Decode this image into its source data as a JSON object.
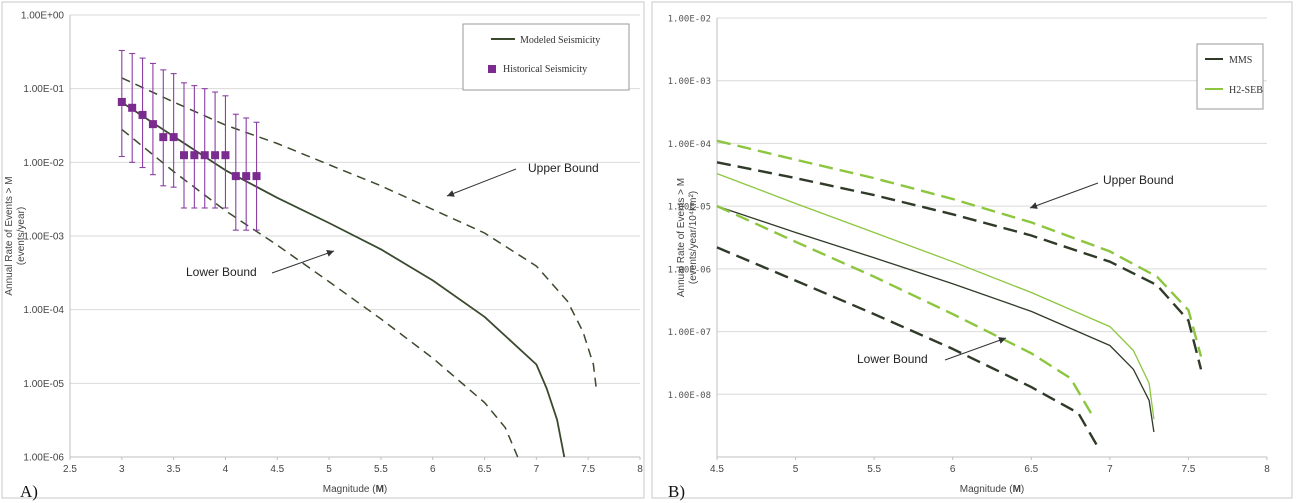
{
  "chart_data": [
    {
      "type": "line",
      "panel_label": "A)",
      "xlabel_prefix": "Magnitude (",
      "xlabel_bold": "M",
      "xlabel_suffix": ")",
      "ylabel_line1": "Annual Rate of Events > M",
      "ylabel_line2": "(events/year)",
      "x_ticks": [
        "2.5",
        "3",
        "3.5",
        "4",
        "4.5",
        "5",
        "5.5",
        "6",
        "6.5",
        "7",
        "7.5",
        "8"
      ],
      "y_ticks": [
        "1.00E+00",
        "1.00E-01",
        "1.00E-02",
        "1.00E-03",
        "1.00E-04",
        "1.00E-05",
        "1.00E-06"
      ],
      "xlim": [
        2.5,
        8
      ],
      "ylim": [
        1e-06,
        1
      ],
      "yscale": "log",
      "grid": "horizontal",
      "legend_position": "top-right",
      "legend": [
        "Modeled Seismicity",
        "Historical Seismicity"
      ],
      "annotations": [
        "Upper Bound",
        "Lower Bound"
      ],
      "series": [
        {
          "name": "Modeled Seismicity",
          "style": "solid",
          "color": "#3b4a2e",
          "x": [
            3.0,
            3.5,
            4.0,
            4.5,
            5.0,
            5.5,
            6.0,
            6.5,
            7.0,
            7.1,
            7.2,
            7.27
          ],
          "y": [
            0.065,
            0.0225,
            0.0078,
            0.0033,
            0.0015,
            0.00066,
            0.00025,
            8e-05,
            1.8e-05,
            8.5e-06,
            3.2e-06,
            1e-06
          ]
        },
        {
          "style": "dashed",
          "color": "#3b4a2e",
          "x": [
            3.0,
            3.5,
            4.0,
            4.5,
            5.0,
            5.5,
            6.0,
            6.5,
            7.0,
            7.3,
            7.45,
            7.55,
            7.58
          ],
          "y": [
            0.14,
            0.066,
            0.032,
            0.018,
            0.0093,
            0.0048,
            0.0023,
            0.0011,
            0.00039,
            0.00013,
            5e-05,
            1.8e-05,
            8e-06
          ]
        },
        {
          "style": "dashed",
          "color": "#3b4a2e",
          "x": [
            3.0,
            3.5,
            4.0,
            4.5,
            5.0,
            5.5,
            6.0,
            6.5,
            6.7,
            6.82
          ],
          "y": [
            0.028,
            0.0075,
            0.0022,
            0.00075,
            0.00024,
            7.5e-05,
            2.2e-05,
            5.5e-06,
            2.5e-06,
            1e-06
          ]
        },
        {
          "name": "Historical Seismicity",
          "style": "markers",
          "color": "#7b2a8f",
          "x": [
            3.0,
            3.1,
            3.2,
            3.3,
            3.4,
            3.5,
            3.6,
            3.7,
            3.8,
            3.9,
            4.0,
            4.1,
            4.2,
            4.3
          ],
          "y": [
            0.066,
            0.055,
            0.044,
            0.033,
            0.022,
            0.022,
            0.0125,
            0.0125,
            0.0125,
            0.0125,
            0.0125,
            0.0065,
            0.0065,
            0.0065
          ],
          "y_low": [
            0.012,
            0.01,
            0.0085,
            0.0068,
            0.0048,
            0.0046,
            0.0024,
            0.0024,
            0.0024,
            0.0024,
            0.0024,
            0.0012,
            0.0012,
            0.0012
          ],
          "y_high": [
            0.33,
            0.3,
            0.26,
            0.22,
            0.18,
            0.16,
            0.12,
            0.11,
            0.1,
            0.09,
            0.08,
            0.045,
            0.04,
            0.035
          ]
        }
      ]
    },
    {
      "type": "line",
      "panel_label": "B)",
      "xlabel_prefix": "Magnitude (",
      "xlabel_bold": "M",
      "xlabel_suffix": ")",
      "ylabel_line1": "Annual Rate of Events > M",
      "ylabel_line2": "(events/year/10⁴km²)",
      "x_ticks": [
        "4.5",
        "5",
        "5.5",
        "6",
        "6.5",
        "7",
        "7.5",
        "8"
      ],
      "y_ticks": [
        "1.00E-02",
        "1.00E-03",
        "1.00E-04",
        "1.00E-05",
        "1.00E-06",
        "1.00E-07",
        "1.00E-08"
      ],
      "xlim": [
        4.5,
        8
      ],
      "ylim": [
        1e-08,
        0.1
      ],
      "yscale": "log",
      "grid": "horizontal",
      "legend_position": "top-right",
      "legend": [
        "MMS",
        "H2-SEB"
      ],
      "annotations": [
        "Upper Bound",
        "Lower Bound"
      ],
      "series": [
        {
          "name": "MMS",
          "style": "solid",
          "color": "#2f3a28",
          "width": 1.3,
          "x": [
            4.5,
            5.0,
            5.5,
            6.0,
            6.5,
            7.0,
            7.15,
            7.25,
            7.28
          ],
          "y": [
            0.0001,
            3.8e-05,
            1.5e-05,
            5.8e-06,
            2.1e-06,
            6e-07,
            2.5e-07,
            8e-08,
            2.5e-08
          ]
        },
        {
          "style": "dashed",
          "color": "#2f3a28",
          "width": 2.4,
          "x": [
            4.5,
            5.0,
            5.5,
            6.0,
            6.5,
            7.0,
            7.3,
            7.5,
            7.58
          ],
          "y": [
            0.0005,
            0.00028,
            0.00015,
            7.4e-05,
            3.4e-05,
            1.3e-05,
            5.5e-06,
            1.5e-06,
            2.5e-07
          ]
        },
        {
          "style": "dashed",
          "color": "#2f3a28",
          "width": 2.4,
          "x": [
            4.5,
            5.0,
            5.5,
            6.0,
            6.5,
            6.8,
            6.92
          ],
          "y": [
            2.2e-05,
            6.5e-06,
            1.9e-06,
            5.3e-07,
            1.3e-07,
            5e-08,
            1.5e-08
          ]
        },
        {
          "name": "H2-SEB",
          "style": "solid",
          "color": "#8cc63f",
          "width": 1.3,
          "x": [
            4.5,
            5.0,
            5.5,
            6.0,
            6.5,
            7.0,
            7.15,
            7.25,
            7.28
          ],
          "y": [
            0.00033,
            0.00011,
            3.8e-05,
            1.3e-05,
            4.2e-06,
            1.2e-06,
            5e-07,
            1.5e-07,
            4e-08
          ]
        },
        {
          "style": "dashed",
          "color": "#8cc63f",
          "width": 2.4,
          "x": [
            4.5,
            5.0,
            5.5,
            6.0,
            6.5,
            7.0,
            7.3,
            7.5,
            7.58
          ],
          "y": [
            0.0011,
            0.00055,
            0.00028,
            0.00013,
            5.5e-05,
            1.9e-05,
            7.5e-06,
            2.2e-06,
            4e-07
          ]
        },
        {
          "style": "dashed",
          "color": "#8cc63f",
          "width": 2.4,
          "x": [
            4.5,
            5.0,
            5.5,
            6.0,
            6.5,
            6.75,
            6.88
          ],
          "y": [
            0.0001,
            2.7e-05,
            7.5e-06,
            1.9e-06,
            4.5e-07,
            1.8e-07,
            5e-08
          ]
        }
      ]
    }
  ]
}
